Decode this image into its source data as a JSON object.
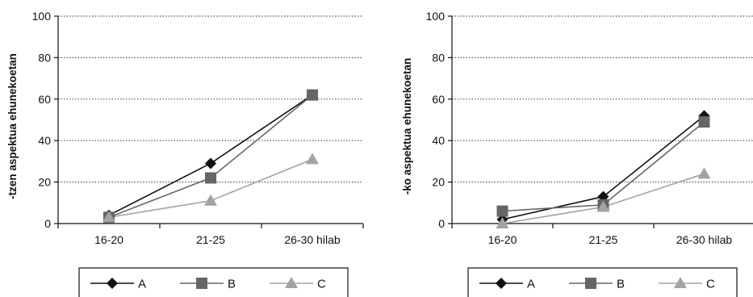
{
  "chart_data": [
    {
      "type": "line",
      "categories": [
        "16-20",
        "21-25",
        "26-30 hilab"
      ],
      "ylabel": "-tzen aspektua ehunekoetan",
      "ylim": [
        0,
        100
      ],
      "yticks": [
        0,
        20,
        40,
        60,
        80,
        100
      ],
      "grid": "horizontal-dotted",
      "legend_position": "bottom",
      "series": [
        {
          "name": "A",
          "values": [
            4,
            29,
            62
          ],
          "marker": "diamond",
          "color": "#111111"
        },
        {
          "name": "B",
          "values": [
            3,
            22,
            62
          ],
          "marker": "square",
          "color": "#666666"
        },
        {
          "name": "C",
          "values": [
            3,
            11,
            31
          ],
          "marker": "triangle",
          "color": "#a3a3a3"
        }
      ]
    },
    {
      "type": "line",
      "categories": [
        "16-20",
        "21-25",
        "26-30 hilab"
      ],
      "ylabel": "-ko aspektua ehunekoetan",
      "ylim": [
        0,
        100
      ],
      "yticks": [
        0,
        20,
        40,
        60,
        80,
        100
      ],
      "grid": "horizontal-dotted",
      "legend_position": "bottom",
      "series": [
        {
          "name": "A",
          "values": [
            2,
            13,
            52
          ],
          "marker": "diamond",
          "color": "#111111"
        },
        {
          "name": "B",
          "values": [
            6,
            9,
            49
          ],
          "marker": "square",
          "color": "#666666"
        },
        {
          "name": "C",
          "values": [
            0,
            8,
            24
          ],
          "marker": "triangle",
          "color": "#a3a3a3"
        }
      ]
    }
  ]
}
